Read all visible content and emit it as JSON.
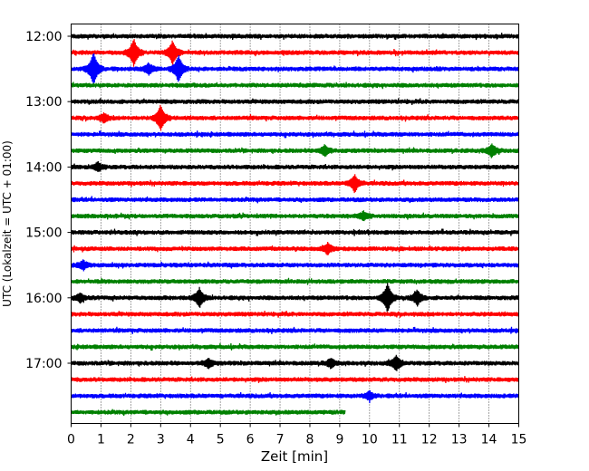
{
  "chart_data": {
    "type": "line",
    "title": "",
    "xlabel": "Zeit  [min]",
    "ylabel": "UTC (Lokalzeit = UTC + 01:00)",
    "xlim": [
      0,
      15
    ],
    "xticks": [
      0,
      1,
      2,
      3,
      4,
      5,
      6,
      7,
      8,
      9,
      10,
      11,
      12,
      13,
      14,
      15
    ],
    "x_grid": "dotted vertical lines at each minute",
    "row_interval_min": 15,
    "y_ticks": [
      "12:00",
      "13:00",
      "14:00",
      "15:00",
      "16:00",
      "17:00"
    ],
    "color_cycle": [
      "#000000",
      "#ff0000",
      "#0000ff",
      "#008000"
    ],
    "rows": [
      {
        "start": "12:00",
        "color": "#000000",
        "end_min": 15,
        "events": []
      },
      {
        "start": "12:15",
        "color": "#ff0000",
        "end_min": 15,
        "events": [
          {
            "t": 2.1,
            "amp": 1.3
          },
          {
            "t": 3.4,
            "amp": 1.1
          }
        ]
      },
      {
        "start": "12:30",
        "color": "#0000ff",
        "end_min": 15,
        "events": [
          {
            "t": 0.75,
            "amp": 1.6
          },
          {
            "t": 3.6,
            "amp": 1.3
          },
          {
            "t": 2.6,
            "amp": 0.5
          }
        ]
      },
      {
        "start": "12:45",
        "color": "#008000",
        "end_min": 15,
        "events": []
      },
      {
        "start": "13:00",
        "color": "#000000",
        "end_min": 15,
        "events": []
      },
      {
        "start": "13:15",
        "color": "#ff0000",
        "end_min": 15,
        "events": [
          {
            "t": 3.0,
            "amp": 1.2
          },
          {
            "t": 1.1,
            "amp": 0.4
          }
        ]
      },
      {
        "start": "13:30",
        "color": "#0000ff",
        "end_min": 15,
        "events": []
      },
      {
        "start": "13:45",
        "color": "#008000",
        "end_min": 15,
        "events": [
          {
            "t": 8.5,
            "amp": 0.5
          },
          {
            "t": 14.1,
            "amp": 0.6
          }
        ]
      },
      {
        "start": "14:00",
        "color": "#000000",
        "end_min": 15,
        "events": [
          {
            "t": 0.9,
            "amp": 0.4
          }
        ]
      },
      {
        "start": "14:15",
        "color": "#ff0000",
        "end_min": 15,
        "events": [
          {
            "t": 9.5,
            "amp": 0.8
          }
        ]
      },
      {
        "start": "14:30",
        "color": "#0000ff",
        "end_min": 15,
        "events": []
      },
      {
        "start": "14:45",
        "color": "#008000",
        "end_min": 15,
        "events": [
          {
            "t": 9.8,
            "amp": 0.4
          }
        ]
      },
      {
        "start": "15:00",
        "color": "#000000",
        "end_min": 15,
        "events": []
      },
      {
        "start": "15:15",
        "color": "#ff0000",
        "end_min": 15,
        "events": [
          {
            "t": 8.6,
            "amp": 0.5
          }
        ]
      },
      {
        "start": "15:30",
        "color": "#0000ff",
        "end_min": 15,
        "events": [
          {
            "t": 0.4,
            "amp": 0.4
          }
        ]
      },
      {
        "start": "15:45",
        "color": "#008000",
        "end_min": 15,
        "events": []
      },
      {
        "start": "16:00",
        "color": "#000000",
        "end_min": 15,
        "events": [
          {
            "t": 4.3,
            "amp": 0.9
          },
          {
            "t": 10.6,
            "amp": 1.4
          },
          {
            "t": 11.6,
            "amp": 0.7
          },
          {
            "t": 0.3,
            "amp": 0.4
          }
        ]
      },
      {
        "start": "16:15",
        "color": "#ff0000",
        "end_min": 15,
        "events": []
      },
      {
        "start": "16:30",
        "color": "#0000ff",
        "end_min": 15,
        "events": []
      },
      {
        "start": "16:45",
        "color": "#008000",
        "end_min": 15,
        "events": []
      },
      {
        "start": "17:00",
        "color": "#000000",
        "end_min": 15,
        "events": [
          {
            "t": 10.9,
            "amp": 0.7
          },
          {
            "t": 4.6,
            "amp": 0.4
          },
          {
            "t": 8.7,
            "amp": 0.4
          }
        ]
      },
      {
        "start": "17:15",
        "color": "#ff0000",
        "end_min": 15,
        "events": []
      },
      {
        "start": "17:30",
        "color": "#0000ff",
        "end_min": 15,
        "events": [
          {
            "t": 10.0,
            "amp": 0.4
          }
        ]
      },
      {
        "start": "17:45",
        "color": "#008000",
        "end_min": 9.2,
        "events": []
      }
    ]
  }
}
